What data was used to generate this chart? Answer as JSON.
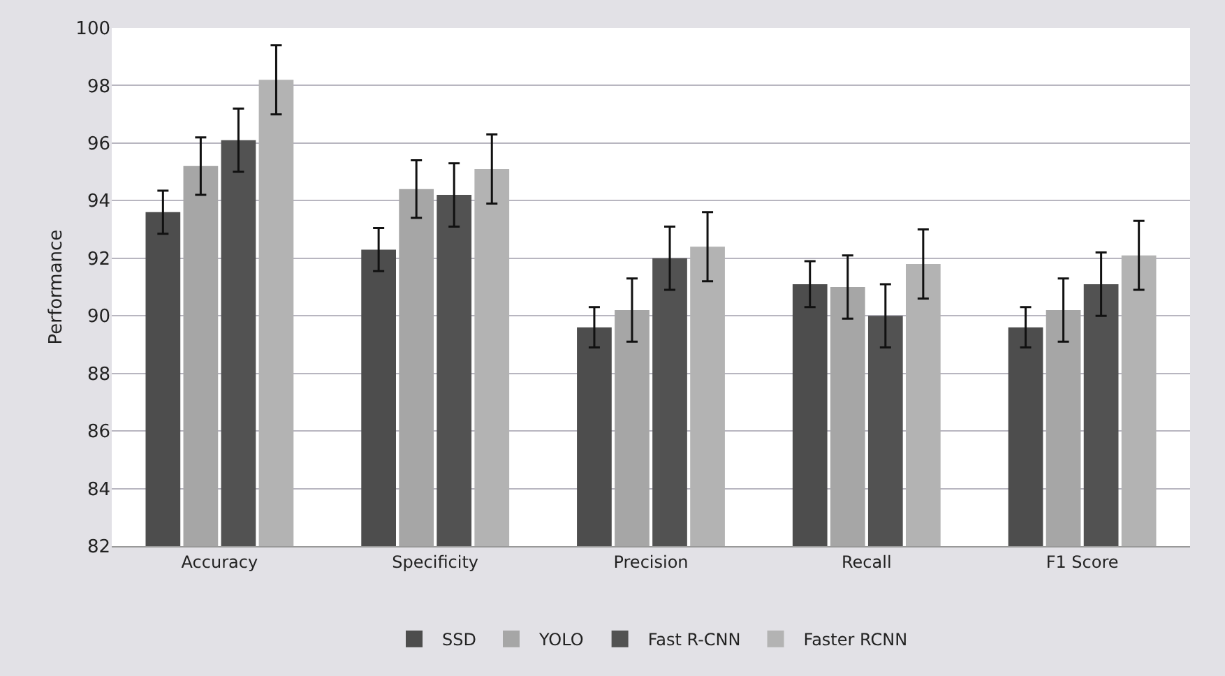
{
  "chart_data": {
    "type": "bar",
    "ylabel": "Performance",
    "categories": [
      "Accuracy",
      "Specificity",
      "Precision",
      "Recall",
      "F1 Score"
    ],
    "series": [
      {
        "name": "SSD",
        "color": "#4d4d4d",
        "values": [
          93.6,
          92.3,
          89.6,
          91.1,
          89.6
        ],
        "errors": [
          0.75,
          0.75,
          0.7,
          0.8,
          0.7
        ]
      },
      {
        "name": "YOLO",
        "color": "#a6a6a6",
        "values": [
          95.2,
          94.4,
          90.2,
          91.0,
          90.2
        ],
        "errors": [
          1.0,
          1.0,
          1.1,
          1.1,
          1.1
        ]
      },
      {
        "name": "Fast R-CNN",
        "color": "#525252",
        "values": [
          96.1,
          94.2,
          92.0,
          90.0,
          91.1
        ],
        "errors": [
          1.1,
          1.1,
          1.1,
          1.1,
          1.1
        ]
      },
      {
        "name": "Faster RCNN",
        "color": "#b3b3b3",
        "values": [
          98.2,
          95.1,
          92.4,
          91.8,
          92.1
        ],
        "errors": [
          1.2,
          1.2,
          1.2,
          1.2,
          1.2
        ]
      }
    ],
    "ylim": [
      82,
      100
    ],
    "yticks": [
      82,
      84,
      86,
      88,
      90,
      92,
      94,
      96,
      98,
      100
    ],
    "grid": "y",
    "legend": "bottom"
  }
}
